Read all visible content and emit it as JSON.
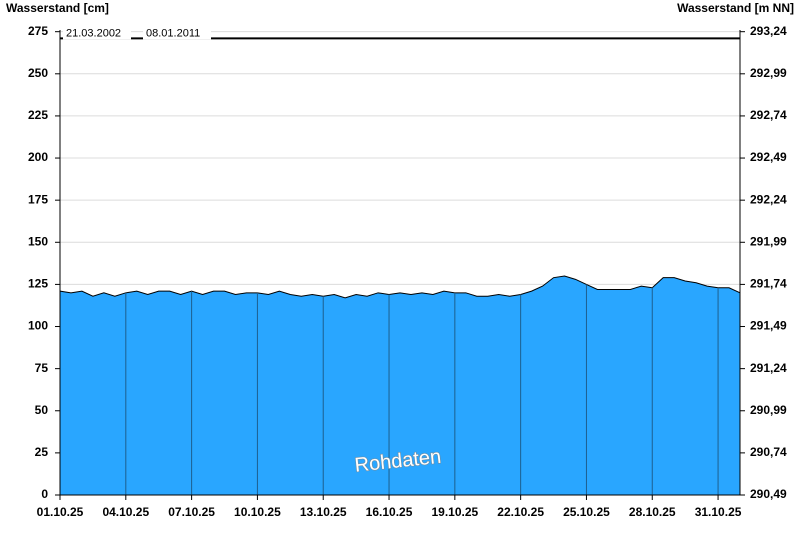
{
  "chart_data": {
    "type": "area",
    "y_label": "Wasserstand [cm]",
    "y2_label": "Wasserstand [m NN]",
    "watermark": "Rohdaten",
    "reference_line": {
      "value": 271,
      "labels": [
        "21.03.2002",
        "08.01.2011"
      ]
    },
    "xlim": [
      0,
      31
    ],
    "xticks": [
      {
        "value": 0,
        "label": "01.10.25"
      },
      {
        "value": 3,
        "label": "04.10.25"
      },
      {
        "value": 6,
        "label": "07.10.25"
      },
      {
        "value": 9,
        "label": "10.10.25"
      },
      {
        "value": 12,
        "label": "13.10.25"
      },
      {
        "value": 15,
        "label": "16.10.25"
      },
      {
        "value": 18,
        "label": "19.10.25"
      },
      {
        "value": 21,
        "label": "22.10.25"
      },
      {
        "value": 24,
        "label": "25.10.25"
      },
      {
        "value": 27,
        "label": "28.10.25"
      },
      {
        "value": 30,
        "label": "31.10.25"
      }
    ],
    "ylim": [
      0,
      276
    ],
    "yticks": [
      0,
      25,
      50,
      75,
      100,
      125,
      150,
      175,
      200,
      225,
      250,
      275
    ],
    "y2lim": [
      290.49,
      293.25
    ],
    "y2ticks": [
      {
        "value": 290.49,
        "label": "290,49"
      },
      {
        "value": 290.74,
        "label": "290,74"
      },
      {
        "value": 290.99,
        "label": "290,99"
      },
      {
        "value": 291.24,
        "label": "291,24"
      },
      {
        "value": 291.49,
        "label": "291,49"
      },
      {
        "value": 291.74,
        "label": "291,74"
      },
      {
        "value": 291.99,
        "label": "291,99"
      },
      {
        "value": 292.24,
        "label": "292,24"
      },
      {
        "value": 292.49,
        "label": "292,49"
      },
      {
        "value": 292.74,
        "label": "292,74"
      },
      {
        "value": 292.99,
        "label": "292,99"
      },
      {
        "value": 293.24,
        "label": "293,24"
      }
    ],
    "grid": true,
    "x": [
      0,
      0.5,
      1,
      1.5,
      2,
      2.5,
      3,
      3.5,
      4,
      4.5,
      5,
      5.5,
      6,
      6.5,
      7,
      7.5,
      8,
      8.5,
      9,
      9.5,
      10,
      10.5,
      11,
      11.5,
      12,
      12.5,
      13,
      13.5,
      14,
      14.5,
      15,
      15.5,
      16,
      16.5,
      17,
      17.5,
      18,
      18.5,
      19,
      19.5,
      20,
      20.5,
      21,
      21.5,
      22,
      22.5,
      23,
      23.5,
      24,
      24.5,
      25,
      25.5,
      26,
      26.5,
      27,
      27.5,
      28,
      28.5,
      29,
      29.5,
      30,
      30.5,
      31
    ],
    "series": [
      {
        "color": "#29a6ff",
        "values": [
          121,
          120,
          121,
          118,
          120,
          118,
          120,
          121,
          119,
          121,
          121,
          119,
          121,
          119,
          121,
          121,
          119,
          120,
          120,
          119,
          121,
          119,
          118,
          119,
          118,
          119,
          117,
          119,
          118,
          120,
          119,
          120,
          119,
          120,
          119,
          121,
          120,
          120,
          118,
          118,
          119,
          118,
          119,
          121,
          124,
          129,
          130,
          128,
          125,
          122,
          122,
          122,
          122,
          124,
          123,
          129,
          129,
          127,
          126,
          124,
          123,
          123,
          120
        ]
      }
    ]
  }
}
